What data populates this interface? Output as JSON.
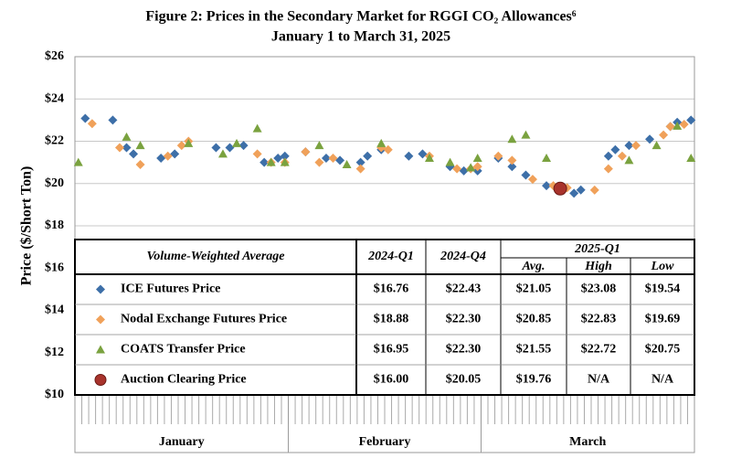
{
  "chart_data": {
    "type": "scatter",
    "title": "Figure 2:  Prices in the Secondary Market for RGGI CO₂ Allowances⁶",
    "subtitle": "January 1 to March 31, 2025",
    "y_label": "Price ($/Short Ton)",
    "ylim": [
      10,
      26
    ],
    "yticks": [
      {
        "value": 10,
        "label": "$10"
      },
      {
        "value": 12,
        "label": "$12"
      },
      {
        "value": 14,
        "label": "$14"
      },
      {
        "value": 16,
        "label": "$16"
      },
      {
        "value": 18,
        "label": "$18"
      },
      {
        "value": 20,
        "label": "$20"
      },
      {
        "value": 22,
        "label": "$22"
      },
      {
        "value": 24,
        "label": "$24"
      },
      {
        "value": 26,
        "label": "$26"
      }
    ],
    "grid": true,
    "months": [
      "January",
      "February",
      "March"
    ],
    "categories": [
      null,
      null,
      null,
      null,
      null,
      null,
      null,
      null,
      null,
      null,
      null,
      null,
      null,
      null,
      null,
      null,
      null,
      null,
      null,
      null,
      null,
      null,
      null,
      null,
      null,
      null,
      null,
      null,
      null,
      null,
      null,
      null,
      null,
      null,
      null,
      null,
      null,
      null,
      null,
      null,
      null,
      null,
      null,
      null,
      null,
      null,
      null,
      null,
      null,
      null,
      null,
      null,
      null,
      null,
      null,
      null,
      null,
      null,
      null,
      null,
      null,
      null,
      null,
      null,
      null,
      null,
      null,
      null,
      null,
      null,
      null,
      null,
      null,
      null,
      null,
      null,
      null,
      null,
      null,
      null,
      null,
      null,
      null,
      null,
      null,
      null,
      null,
      null,
      null,
      null
    ],
    "series": [
      {
        "name": "ICE Futures Price",
        "color": "#3d6fa8",
        "marker": "diamond",
        "values": [
          null,
          23.08,
          null,
          null,
          null,
          23.0,
          null,
          21.7,
          21.4,
          null,
          null,
          null,
          21.2,
          null,
          21.4,
          null,
          null,
          null,
          null,
          null,
          21.7,
          null,
          21.7,
          null,
          21.8,
          null,
          null,
          21.0,
          null,
          21.2,
          21.3,
          null,
          null,
          21.5,
          null,
          null,
          21.2,
          null,
          21.1,
          null,
          null,
          21.0,
          21.3,
          null,
          21.6,
          null,
          null,
          null,
          21.3,
          null,
          21.4,
          null,
          null,
          null,
          20.8,
          null,
          20.6,
          null,
          20.6,
          null,
          null,
          21.2,
          null,
          20.8,
          null,
          20.4,
          null,
          null,
          19.9,
          null,
          19.8,
          null,
          19.54,
          19.7,
          null,
          null,
          null,
          21.3,
          21.6,
          null,
          21.8,
          null,
          null,
          22.1,
          null,
          null,
          22.7,
          22.9,
          null,
          23.0
        ]
      },
      {
        "name": "Nodal Exchange Futures Price",
        "color": "#f0a15a",
        "marker": "diamond",
        "values": [
          null,
          null,
          22.83,
          null,
          null,
          null,
          21.7,
          null,
          null,
          20.9,
          null,
          null,
          null,
          21.3,
          null,
          21.8,
          22.0,
          null,
          null,
          null,
          null,
          null,
          null,
          null,
          null,
          null,
          21.4,
          null,
          21.0,
          null,
          21.0,
          null,
          null,
          21.5,
          null,
          21.0,
          null,
          21.2,
          null,
          null,
          null,
          20.7,
          null,
          null,
          21.7,
          21.6,
          null,
          null,
          null,
          null,
          null,
          21.3,
          null,
          null,
          null,
          20.7,
          null,
          20.7,
          20.8,
          null,
          null,
          21.3,
          null,
          21.1,
          null,
          null,
          20.2,
          null,
          null,
          19.9,
          null,
          19.8,
          null,
          null,
          null,
          19.69,
          null,
          20.7,
          null,
          21.3,
          null,
          21.8,
          null,
          null,
          null,
          22.3,
          22.7,
          null,
          22.8,
          null
        ]
      },
      {
        "name": "COATS Transfer Price",
        "color": "#7aa23f",
        "marker": "triangle",
        "values": [
          21.0,
          null,
          null,
          null,
          null,
          null,
          null,
          22.2,
          null,
          21.8,
          null,
          null,
          null,
          null,
          null,
          null,
          21.9,
          null,
          null,
          null,
          null,
          21.4,
          null,
          21.9,
          null,
          null,
          22.6,
          null,
          21.0,
          null,
          21.0,
          null,
          null,
          null,
          null,
          21.8,
          null,
          null,
          null,
          20.9,
          null,
          null,
          null,
          null,
          21.9,
          null,
          null,
          null,
          null,
          null,
          null,
          21.2,
          null,
          null,
          21.0,
          null,
          null,
          20.75,
          21.2,
          null,
          null,
          null,
          null,
          22.1,
          null,
          22.3,
          null,
          null,
          21.2,
          null,
          null,
          null,
          null,
          null,
          null,
          null,
          null,
          null,
          null,
          null,
          21.1,
          null,
          null,
          null,
          21.8,
          null,
          null,
          22.72,
          null,
          21.2
        ]
      },
      {
        "name": "Auction Clearing Price",
        "color": "#a8332c",
        "marker": "circle",
        "values": [
          null,
          null,
          null,
          null,
          null,
          null,
          null,
          null,
          null,
          null,
          null,
          null,
          null,
          null,
          null,
          null,
          null,
          null,
          null,
          null,
          null,
          null,
          null,
          null,
          null,
          null,
          null,
          null,
          null,
          null,
          null,
          null,
          null,
          null,
          null,
          null,
          null,
          null,
          null,
          null,
          null,
          null,
          null,
          null,
          null,
          null,
          null,
          null,
          null,
          null,
          null,
          null,
          null,
          null,
          null,
          null,
          null,
          null,
          null,
          null,
          null,
          null,
          null,
          null,
          null,
          null,
          null,
          null,
          null,
          null,
          19.76,
          null,
          null,
          null,
          null,
          null,
          null,
          null,
          null,
          null,
          null,
          null,
          null,
          null,
          null,
          null,
          null,
          null,
          null,
          null
        ]
      }
    ],
    "table": {
      "header": "Volume-Weighted Average",
      "columns": [
        "2024-Q1",
        "2024-Q4"
      ],
      "group": "2025-Q1",
      "subcolumns": [
        "Avg.",
        "High",
        "Low"
      ],
      "rows": [
        [
          "$16.76",
          "$22.43",
          "$21.05",
          "$23.08",
          "$19.54"
        ],
        [
          "$18.88",
          "$22.30",
          "$20.85",
          "$22.83",
          "$19.69"
        ],
        [
          "$16.95",
          "$22.30",
          "$21.55",
          "$22.72",
          "$20.75"
        ],
        [
          "$16.00",
          "$20.05",
          "$19.76",
          "N/A",
          "N/A"
        ]
      ]
    }
  }
}
